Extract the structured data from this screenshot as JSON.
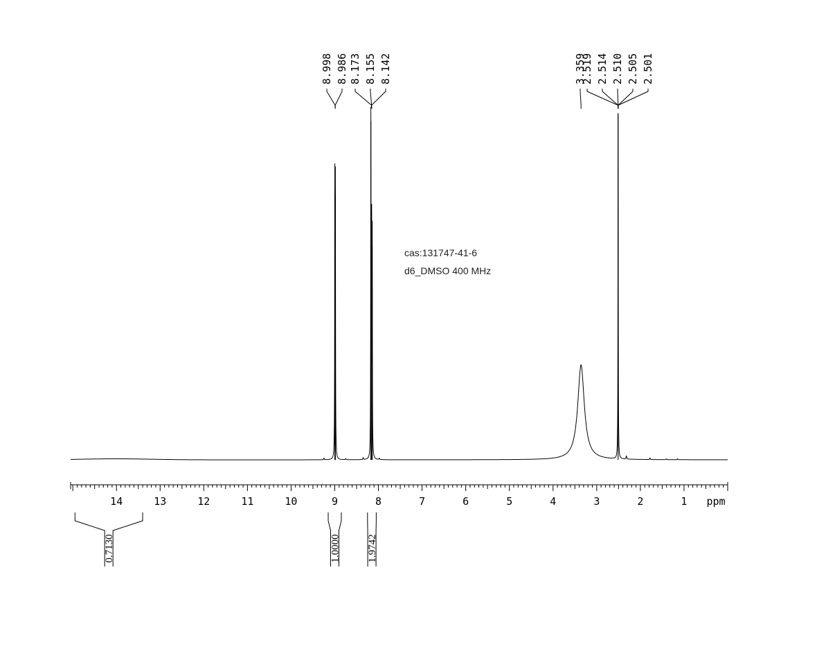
{
  "chart_data": {
    "type": "line",
    "title": "",
    "xlabel": "ppm",
    "ylabel": "",
    "x_reversed": true,
    "xlim": [
      15.05,
      0.0
    ],
    "x_ticks": [
      14,
      13,
      12,
      11,
      10,
      9,
      8,
      7,
      6,
      5,
      4,
      3,
      2,
      1
    ],
    "annotations": [
      "cas:131747-41-6",
      "d6_DMSO  400 MHz"
    ],
    "peaks": [
      {
        "ppm": 8.998,
        "intensity": 0.78,
        "width": 0.004
      },
      {
        "ppm": 8.986,
        "intensity": 0.77,
        "width": 0.004
      },
      {
        "ppm": 8.173,
        "intensity": 0.98,
        "width": 0.004
      },
      {
        "ppm": 8.155,
        "intensity": 0.64,
        "width": 0.004
      },
      {
        "ppm": 8.142,
        "intensity": 0.62,
        "width": 0.004
      },
      {
        "ppm": 3.359,
        "intensity": 0.275,
        "width": 0.09
      },
      {
        "ppm": 2.51,
        "intensity": 1.0,
        "width": 0.004
      }
    ],
    "peak_label_groups": [
      {
        "labels": [
          "8.998",
          "8.986"
        ],
        "target_ppm": 8.99
      },
      {
        "labels": [
          "8.173",
          "8.155",
          "8.142"
        ],
        "target_ppm": 8.157
      },
      {
        "labels": [
          "3.359"
        ],
        "target_ppm": 3.359
      },
      {
        "labels": [
          "2.519",
          "2.514",
          "2.510",
          "2.505",
          "2.501"
        ],
        "target_ppm": 2.51
      }
    ],
    "integrals": [
      {
        "from": 14.95,
        "to": 13.4,
        "value": "0.7130"
      },
      {
        "from": 9.15,
        "to": 8.85,
        "value": "1.0000"
      },
      {
        "from": 8.25,
        "to": 8.05,
        "value": "1.9742"
      }
    ],
    "baseline_feature": "broad hump 15.0-12.5 ppm (very low)"
  }
}
